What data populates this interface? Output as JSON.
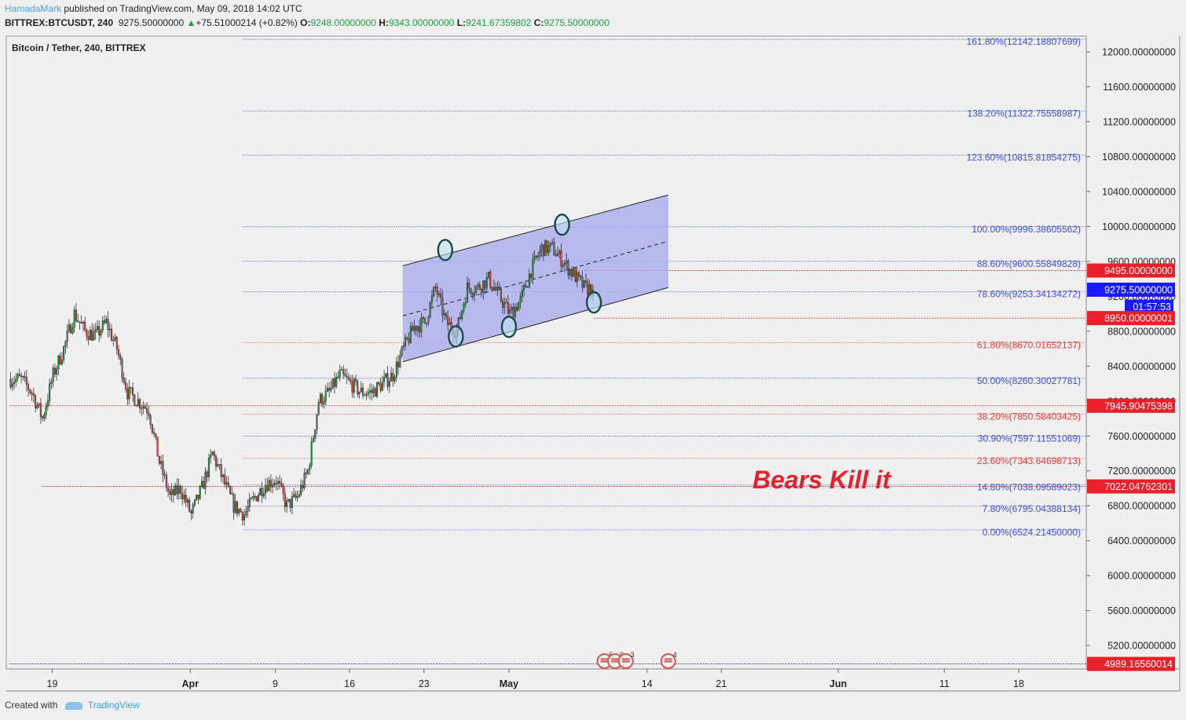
{
  "header": {
    "author": "HamadaMark",
    "published": "published on TradingView.com, May 09, 2018 14:02 UTC",
    "symbol": "BITTREX:BTCUSDT, 240",
    "last": "9275.50000000",
    "change": "+75.51000214 (+0.82%)",
    "o_label": "O:",
    "o": "9248.00000000",
    "h_label": "H:",
    "h": "9343.00000000",
    "l_label": "L:",
    "l": "9241.67359802",
    "c_label": "C:",
    "c": "9275.50000000"
  },
  "footer": {
    "created_with": "Created with",
    "brand": "TradingView"
  },
  "colors": {
    "up": "#1e9c3c",
    "down": "#e53935",
    "fib_blue": "#3b4fd6",
    "fib_red": "#e53935",
    "channel_fill": "#a5a8ee",
    "tag_red": "#e8202a",
    "tag_blue": "#1a1aff"
  },
  "chart_data": {
    "type": "candlestick",
    "title": "Bitcoin / Tether, 240, BITTREX",
    "annotation": "Bears Kill it",
    "y_axis": {
      "scale": "linear",
      "min": 4900,
      "max": 12400,
      "ticks": [
        "12000.00000000",
        "11600.00000000",
        "11200.00000000",
        "10800.00000000",
        "10400.00000000",
        "10000.00000000",
        "9600.00000000",
        "9200.00000000",
        "8800.00000000",
        "8400.00000000",
        "8000.00000000",
        "7600.00000000",
        "7200.00000000",
        "6800.00000000",
        "6400.00000000",
        "6000.00000000",
        "5600.00000000",
        "5200.00000000"
      ],
      "tick_values": [
        12000,
        11600,
        11200,
        10800,
        10400,
        10000,
        9600,
        9200,
        8800,
        8400,
        8000,
        7600,
        7200,
        6800,
        6400,
        6000,
        5600,
        5200
      ]
    },
    "x_axis": {
      "start": "2018-03-15",
      "end": "2018-06-22",
      "ticks": [
        {
          "label": "19",
          "date": "2018-03-19",
          "bold": false
        },
        {
          "label": "Apr",
          "date": "2018-04-01",
          "bold": true
        },
        {
          "label": "9",
          "date": "2018-04-09",
          "bold": false
        },
        {
          "label": "16",
          "date": "2018-04-16",
          "bold": false
        },
        {
          "label": "23",
          "date": "2018-04-23",
          "bold": false
        },
        {
          "label": "May",
          "date": "2018-05-01",
          "bold": true
        },
        {
          "label": "14",
          "date": "2018-05-14",
          "bold": false
        },
        {
          "label": "21",
          "date": "2018-05-21",
          "bold": false
        },
        {
          "label": "Jun",
          "date": "2018-06-01",
          "bold": true
        },
        {
          "label": "11",
          "date": "2018-06-11",
          "bold": false
        },
        {
          "label": "18",
          "date": "2018-06-18",
          "bold": false
        }
      ]
    },
    "price_path": [
      [
        "2018-03-15",
        8250
      ],
      [
        "2018-03-16",
        8250
      ],
      [
        "2018-03-17",
        8100
      ],
      [
        "2018-03-18",
        7800
      ],
      [
        "2018-03-19",
        8300
      ],
      [
        "2018-03-20",
        8600
      ],
      [
        "2018-03-21",
        9000
      ],
      [
        "2018-03-22",
        8800
      ],
      [
        "2018-03-23",
        8750
      ],
      [
        "2018-03-24",
        8900
      ],
      [
        "2018-03-25",
        8600
      ],
      [
        "2018-03-26",
        8100
      ],
      [
        "2018-03-27",
        8000
      ],
      [
        "2018-03-28",
        7900
      ],
      [
        "2018-03-29",
        7300
      ],
      [
        "2018-03-30",
        6900
      ],
      [
        "2018-03-31",
        7000
      ],
      [
        "2018-04-01",
        6700
      ],
      [
        "2018-04-02",
        7000
      ],
      [
        "2018-04-03",
        7400
      ],
      [
        "2018-04-04",
        7100
      ],
      [
        "2018-04-05",
        6800
      ],
      [
        "2018-04-06",
        6700
      ],
      [
        "2018-04-07",
        6900
      ],
      [
        "2018-04-08",
        7050
      ],
      [
        "2018-04-09",
        7100
      ],
      [
        "2018-04-10",
        6800
      ],
      [
        "2018-04-11",
        6900
      ],
      [
        "2018-04-12",
        7200
      ],
      [
        "2018-04-13",
        8000
      ],
      [
        "2018-04-14",
        8100
      ],
      [
        "2018-04-15",
        8300
      ],
      [
        "2018-04-16",
        8200
      ],
      [
        "2018-04-17",
        8100
      ],
      [
        "2018-04-18",
        8100
      ],
      [
        "2018-04-19",
        8200
      ],
      [
        "2018-04-20",
        8300
      ],
      [
        "2018-04-21",
        8600
      ],
      [
        "2018-04-22",
        8850
      ],
      [
        "2018-04-23",
        8900
      ],
      [
        "2018-04-24",
        9300
      ],
      [
        "2018-04-25",
        8900
      ],
      [
        "2018-04-26",
        8800
      ],
      [
        "2018-04-27",
        9300
      ],
      [
        "2018-04-28",
        9300
      ],
      [
        "2018-04-29",
        9400
      ],
      [
        "2018-04-30",
        9200
      ],
      [
        "2018-05-01",
        9000
      ],
      [
        "2018-05-02",
        9150
      ],
      [
        "2018-05-03",
        9500
      ],
      [
        "2018-05-04",
        9750
      ],
      [
        "2018-05-05",
        9750
      ],
      [
        "2018-05-06",
        9600
      ],
      [
        "2018-05-07",
        9450
      ],
      [
        "2018-05-08",
        9300
      ],
      [
        "2018-05-09",
        9275.5
      ]
    ],
    "candles": {
      "count": 330,
      "first": "2018-03-15",
      "last": "2018-05-09 12:00",
      "interval_hours": 4
    },
    "fib_levels": [
      {
        "ratio": "161.80%",
        "price": 12142.18807699,
        "label": "161.80%(12142.18807699)",
        "color": "blue"
      },
      {
        "ratio": "138.20%",
        "price": 11322.75558987,
        "label": "138.20%(11322.75558987)",
        "color": "blue"
      },
      {
        "ratio": "123.60%",
        "price": 10815.81854275,
        "label": "123.60%(10815.81854275)",
        "color": "blue"
      },
      {
        "ratio": "100.00%",
        "price": 9996.38605562,
        "label": "100.00%(9996.38605562)",
        "color": "blue"
      },
      {
        "ratio": "88.60%",
        "price": 9600.55849828,
        "label": "88.60%(9600.55849828)",
        "color": "blue"
      },
      {
        "ratio": "78.60%",
        "price": 9253.34134272,
        "label": "78.60%(9253.34134272)",
        "color": "blue"
      },
      {
        "ratio": "61.80%",
        "price": 8670.01652137,
        "label": "61.80%(8670.01652137)",
        "color": "red"
      },
      {
        "ratio": "50.00%",
        "price": 8260.30027781,
        "label": "50.00%(8260.30027781)",
        "color": "blue"
      },
      {
        "ratio": "38.20%",
        "price": 7850.58403425,
        "label": "38.20%(7850.58403425)",
        "color": "red"
      },
      {
        "ratio": "30.90%",
        "price": 7597.11551069,
        "label": "30.90%(7597.11551069)",
        "color": "blue"
      },
      {
        "ratio": "23.60%",
        "price": 7343.64698713,
        "label": "23.60%(7343.64698713)",
        "color": "red"
      },
      {
        "ratio": "14.80%",
        "price": 7038.09589023,
        "label": "14.80%(7038.09589023)",
        "color": "blue"
      },
      {
        "ratio": "7.80%",
        "price": 6795.04388134,
        "label": "7.80%(6795.04388134)",
        "color": "blue"
      },
      {
        "ratio": "0.00%",
        "price": 6524.2145,
        "label": "0.00%(6524.21450000)",
        "color": "blue"
      }
    ],
    "price_tags": [
      {
        "label": "9495.00000000",
        "price": 9495,
        "color": "red"
      },
      {
        "label": "9275.50000000",
        "price": 9275.5,
        "color": "blue"
      },
      {
        "label": "01:57:53",
        "price": 9080,
        "color": "blue"
      },
      {
        "label": "8950.00000001",
        "price": 8950,
        "color": "red"
      },
      {
        "label": "7945.90475398",
        "price": 7945.90475398,
        "color": "red"
      },
      {
        "label": "7022.04762301",
        "price": 7022.04762301,
        "color": "red"
      },
      {
        "label": "4989.16560014",
        "price": 4989.16560014,
        "color": "red"
      }
    ],
    "horizontal_lines": [
      {
        "price": 9495,
        "start": "2018-05-06",
        "color": "red"
      },
      {
        "price": 8950,
        "start": "2018-05-09",
        "color": "red"
      },
      {
        "price": 7945.90475398,
        "start": "2018-03-15",
        "color": "red"
      },
      {
        "price": 7022.04762301,
        "start": "2018-03-18",
        "color": "red"
      },
      {
        "price": 4989.16560014,
        "start": "2018-03-15",
        "color": "navy"
      }
    ],
    "channel": {
      "start": "2018-04-21",
      "end": "2018-05-16",
      "upper": [
        9550,
        10360
      ],
      "lower": [
        8450,
        9300
      ],
      "mid": [
        8975,
        9830
      ]
    },
    "markers": [
      {
        "date": "2018-04-25",
        "price": 9730
      },
      {
        "date": "2018-04-26",
        "price": 8740
      },
      {
        "date": "2018-05-01",
        "price": 8850
      },
      {
        "date": "2018-05-06",
        "price": 10020
      },
      {
        "date": "2018-05-09",
        "price": 9130
      }
    ],
    "events": [
      {
        "date": "2018-05-10",
        "label": "5"
      },
      {
        "date": "2018-05-11",
        "label": "9"
      },
      {
        "date": "2018-05-12",
        "label": "3"
      },
      {
        "date": "2018-05-16",
        "label": "4"
      }
    ]
  }
}
